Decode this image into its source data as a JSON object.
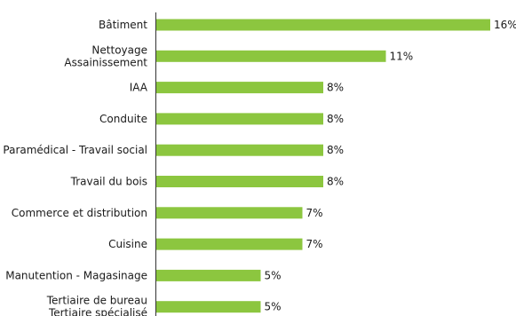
{
  "chart_data": {
    "type": "bar",
    "orientation": "horizontal",
    "categories": [
      [
        "Bâtiment"
      ],
      [
        "Nettoyage",
        "Assainissement"
      ],
      [
        "IAA"
      ],
      [
        "Conduite"
      ],
      [
        "Paramédical - Travail social"
      ],
      [
        "Travail du bois"
      ],
      [
        "Commerce et distribution"
      ],
      [
        "Cuisine"
      ],
      [
        "Manutention - Magasinage"
      ],
      [
        "Tertiaire de bureau",
        "Tertiaire spécialisé"
      ]
    ],
    "values": [
      16,
      11,
      8,
      8,
      8,
      8,
      7,
      7,
      5,
      5
    ],
    "value_labels": [
      "16%",
      "11%",
      "8%",
      "8%",
      "8%",
      "8%",
      "7%",
      "7%",
      "5%",
      "5%"
    ],
    "bar_color": "#8cc63f",
    "title": "",
    "xlabel": "",
    "ylabel": "",
    "xlim": [
      0,
      16
    ],
    "grid": false,
    "legend": "none"
  }
}
